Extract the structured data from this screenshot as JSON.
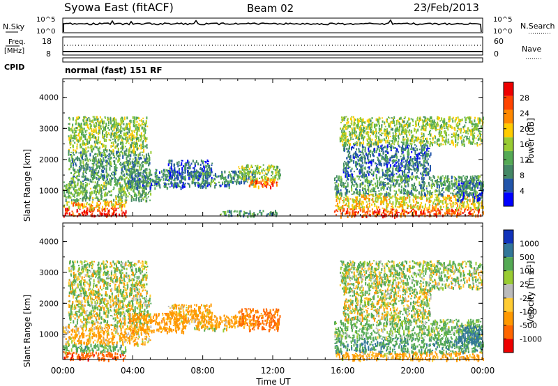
{
  "header": {
    "station": "Syowa East (fitACF)",
    "beam": "Beam 02",
    "date": "23/Feb/2013"
  },
  "noise_panel": {
    "left_label": "N.Sky",
    "left_ticks": [
      "10^5",
      "10^0"
    ],
    "right_label": "N.Search",
    "right_ticks": [
      "10^5",
      "10^0"
    ]
  },
  "freq_panel": {
    "left_label_1": "Freq.",
    "left_label_2": "[MHz]",
    "left_ticks": [
      "18",
      "8"
    ],
    "right_label": "Nave",
    "right_ticks": [
      "60",
      "0"
    ],
    "cpid_label": "CPID"
  },
  "mode_text": "normal (fast) 151 RF",
  "time_axis": {
    "title": "Time UT",
    "ticks": [
      "00:00",
      "04:00",
      "08:00",
      "12:00",
      "16:00",
      "20:00",
      "00:00"
    ]
  },
  "range_ticks": [
    "1000",
    "2000",
    "3000",
    "4000"
  ],
  "colors": {
    "power_scale": [
      "#0000ff",
      "#2255aa",
      "#448866",
      "#55aa55",
      "#99cc33",
      "#ffcc00",
      "#ff8800",
      "#ff4400",
      "#ee0000"
    ],
    "velocity_scale": [
      "#ee0000",
      "#ff6600",
      "#ff9900",
      "#ffcc33",
      "#bbbbbb",
      "#99cc33",
      "#55aa55",
      "#337799",
      "#1133bb"
    ]
  },
  "chart_data": [
    {
      "type": "heatmap",
      "name": "power",
      "xlabel": "Time UT",
      "ylabel": "Slant Range [km]",
      "xlim": [
        0,
        24
      ],
      "ylim": [
        180,
        4600
      ],
      "colorbar_label": "Power [dB]",
      "colorbar_ticks": [
        "4",
        "8",
        "12",
        "16",
        "20",
        "24",
        "28"
      ],
      "colorbar_range": [
        0,
        30
      ],
      "regions": [
        {
          "t": [
            0.0,
            3.6
          ],
          "r": [
            200,
            450
          ],
          "v": 27
        },
        {
          "t": [
            0.0,
            3.6
          ],
          "r": [
            450,
            700
          ],
          "v": 20
        },
        {
          "t": [
            0.0,
            5.0
          ],
          "r": [
            700,
            1300
          ],
          "v": 12
        },
        {
          "t": [
            0.3,
            5.0
          ],
          "r": [
            1300,
            2300
          ],
          "v": 10
        },
        {
          "t": [
            0.3,
            4.8
          ],
          "r": [
            2300,
            3400
          ],
          "v": 14
        },
        {
          "t": [
            3.7,
            7.0
          ],
          "r": [
            1100,
            1700
          ],
          "v": 8
        },
        {
          "t": [
            5.2,
            9.5
          ],
          "r": [
            1150,
            1280
          ],
          "v": 6
        },
        {
          "t": [
            6.0,
            8.5
          ],
          "r": [
            1400,
            2000
          ],
          "v": 6
        },
        {
          "t": [
            7.2,
            11.0
          ],
          "r": [
            1250,
            1650
          ],
          "v": 9
        },
        {
          "t": [
            10.0,
            12.4
          ],
          "r": [
            1350,
            1850
          ],
          "v": 14
        },
        {
          "t": [
            10.6,
            12.3
          ],
          "r": [
            1150,
            1400
          ],
          "v": 24
        },
        {
          "t": [
            9.0,
            12.2
          ],
          "r": [
            200,
            380
          ],
          "v": 10
        },
        {
          "t": [
            15.5,
            24.0
          ],
          "r": [
            200,
            450
          ],
          "v": 25
        },
        {
          "t": [
            15.5,
            24.0
          ],
          "r": [
            450,
            900
          ],
          "v": 18
        },
        {
          "t": [
            15.5,
            24.0
          ],
          "r": [
            900,
            1500
          ],
          "v": 10
        },
        {
          "t": [
            16.0,
            21.0
          ],
          "r": [
            1500,
            2500
          ],
          "v": 7
        },
        {
          "t": [
            15.8,
            24.0
          ],
          "r": [
            2500,
            3400
          ],
          "v": 14
        },
        {
          "t": [
            22.5,
            24.0
          ],
          "r": [
            700,
            1300
          ],
          "v": 6
        }
      ]
    },
    {
      "type": "heatmap",
      "name": "velocity",
      "xlabel": "Time UT",
      "ylabel": "Slant Range [km]",
      "xlim": [
        0,
        24
      ],
      "ylim": [
        180,
        4600
      ],
      "colorbar_label": "Velocity [m s^-1]",
      "colorbar_ticks": [
        "1000",
        "500",
        "100",
        "25",
        "-25",
        "-100",
        "-500",
        "-1000"
      ],
      "regions": [
        {
          "t": [
            0.0,
            3.6
          ],
          "r": [
            200,
            450
          ],
          "v": -800
        },
        {
          "t": [
            0.0,
            3.6
          ],
          "r": [
            450,
            700
          ],
          "v": 300
        },
        {
          "t": [
            0.0,
            5.0
          ],
          "r": [
            700,
            1300
          ],
          "v": -200
        },
        {
          "t": [
            0.3,
            5.0
          ],
          "r": [
            1300,
            2300
          ],
          "v": 50
        },
        {
          "t": [
            0.3,
            4.8
          ],
          "r": [
            2300,
            3400
          ],
          "v": 80
        },
        {
          "t": [
            3.7,
            7.0
          ],
          "r": [
            1100,
            1700
          ],
          "v": -300
        },
        {
          "t": [
            6.0,
            8.5
          ],
          "r": [
            1400,
            2000
          ],
          "v": -150
        },
        {
          "t": [
            7.5,
            9.5
          ],
          "r": [
            1150,
            1280
          ],
          "v": 0
        },
        {
          "t": [
            7.2,
            11.0
          ],
          "r": [
            1250,
            1650
          ],
          "v": -250
        },
        {
          "t": [
            10.0,
            12.4
          ],
          "r": [
            1350,
            1850
          ],
          "v": -600
        },
        {
          "t": [
            10.6,
            12.3
          ],
          "r": [
            1150,
            1400
          ],
          "v": -700
        },
        {
          "t": [
            15.5,
            24.0
          ],
          "r": [
            200,
            450
          ],
          "v": -200
        },
        {
          "t": [
            15.5,
            24.0
          ],
          "r": [
            450,
            900
          ],
          "v": 400
        },
        {
          "t": [
            15.5,
            24.0
          ],
          "r": [
            900,
            1500
          ],
          "v": 200
        },
        {
          "t": [
            16.0,
            21.0
          ],
          "r": [
            1500,
            2500
          ],
          "v": 30
        },
        {
          "t": [
            15.8,
            24.0
          ],
          "r": [
            2500,
            3400
          ],
          "v": 90
        },
        {
          "t": [
            22.5,
            24.0
          ],
          "r": [
            700,
            1300
          ],
          "v": 700
        }
      ]
    }
  ]
}
